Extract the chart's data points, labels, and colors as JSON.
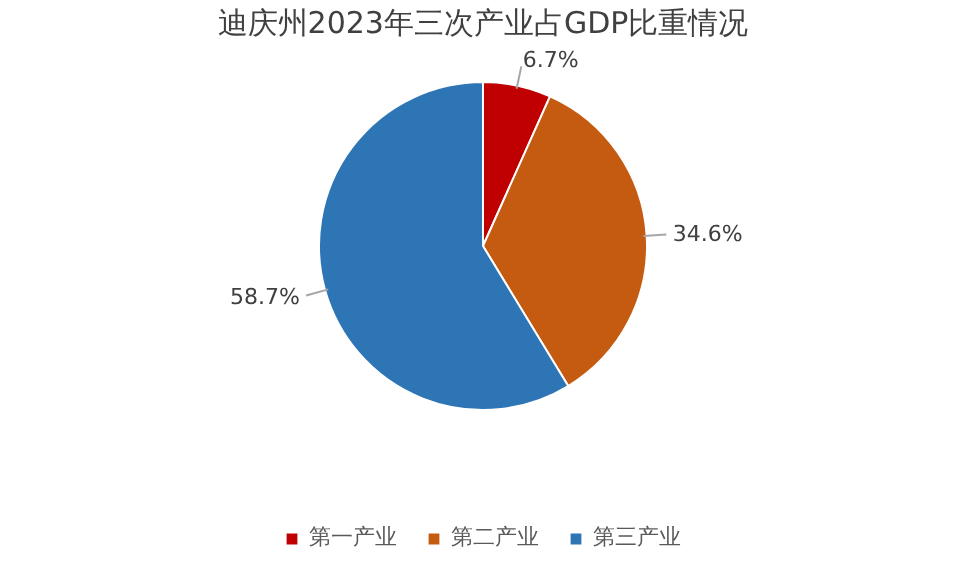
{
  "chart_data": {
    "type": "pie",
    "title": "迪庆州2023年三次产业占GDP比重情况",
    "categories": [
      "第一产业",
      "第二产业",
      "第三产业"
    ],
    "values": [
      6.7,
      34.6,
      58.7
    ],
    "colors": [
      "#c00000",
      "#c55a11",
      "#2e75b6"
    ],
    "value_labels": [
      "6.7%",
      "34.6%",
      "58.7%"
    ],
    "legend": "bottom"
  }
}
